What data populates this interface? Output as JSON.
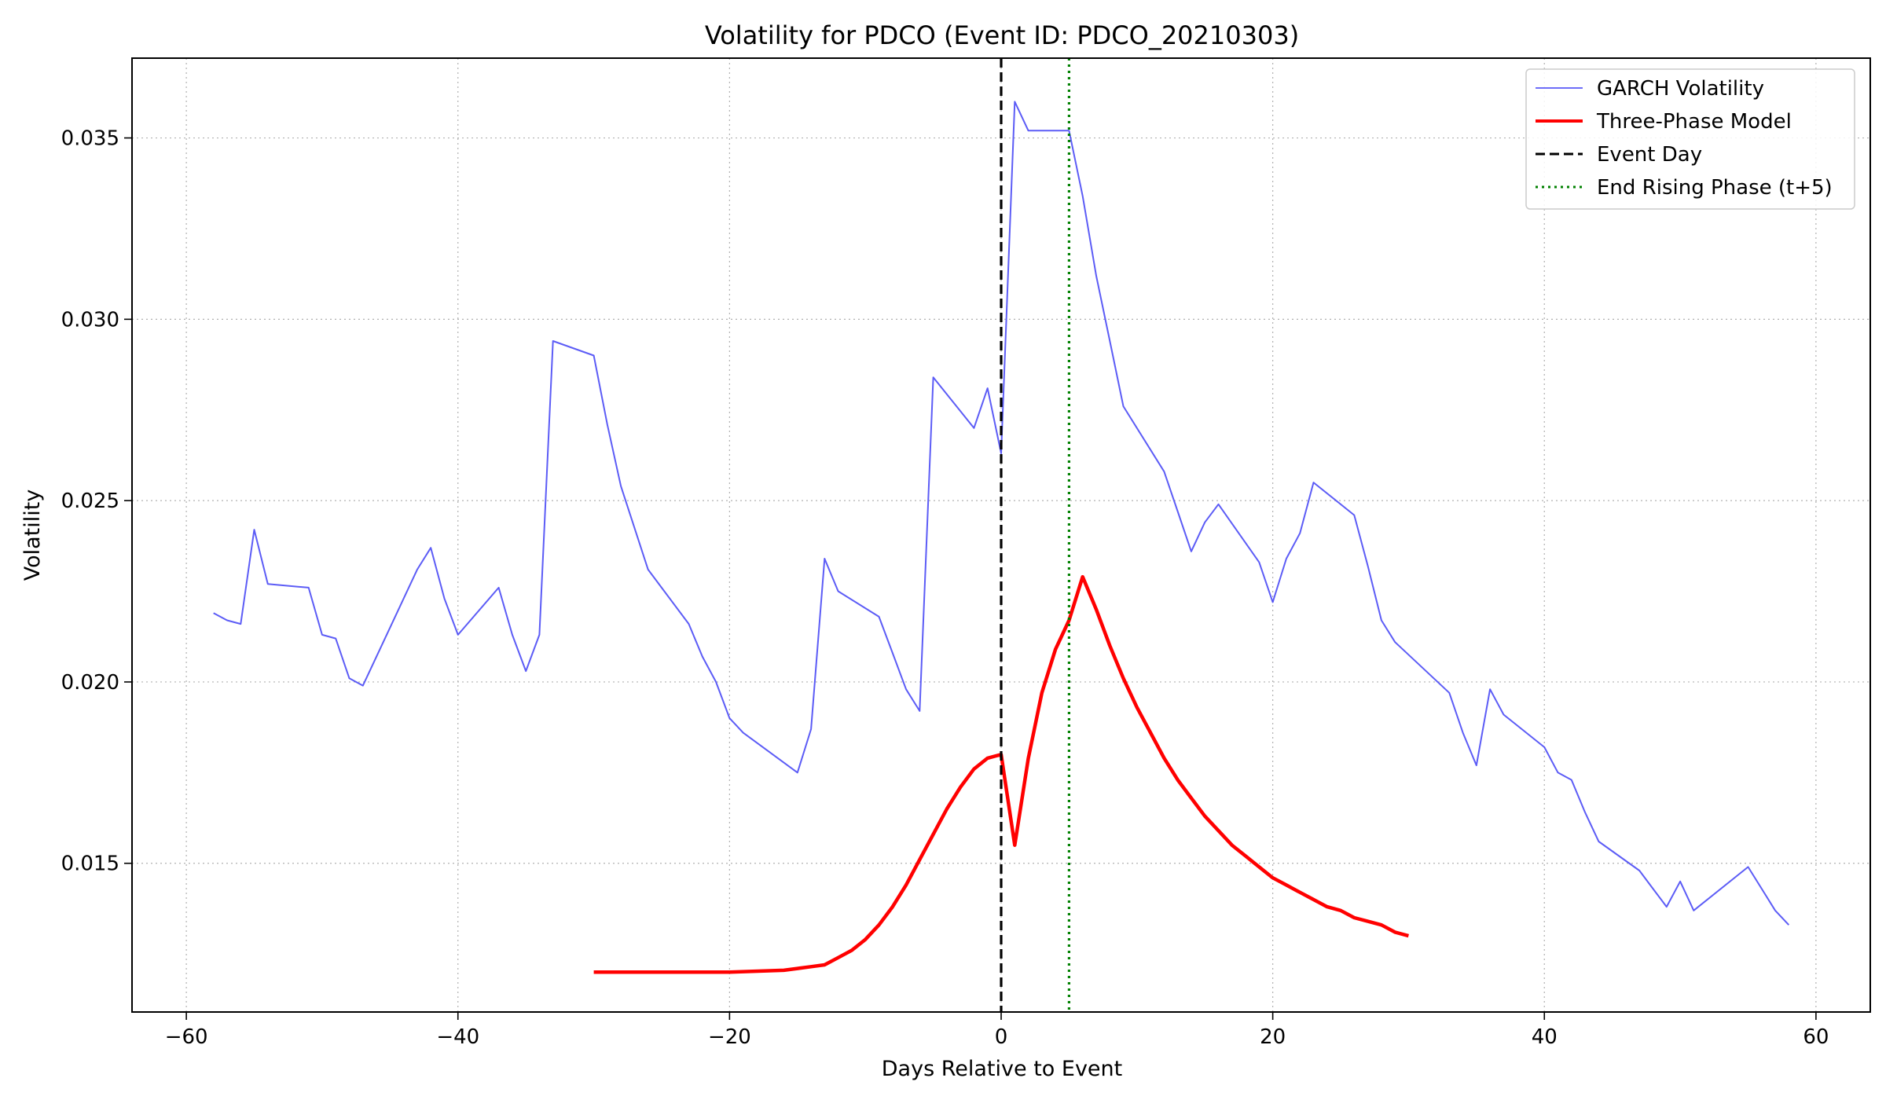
{
  "chart_data": {
    "type": "line",
    "title": "Volatility for PDCO (Event ID: PDCO_20210303)",
    "xlabel": "Days Relative to Event",
    "ylabel": "Volatility",
    "xlim": [
      -64,
      64
    ],
    "ylim": [
      0.0109,
      0.0372
    ],
    "xticks": [
      -60,
      -40,
      -20,
      0,
      20,
      40,
      60
    ],
    "xtick_labels": [
      "−60",
      "−40",
      "−20",
      "0",
      "20",
      "40",
      "60"
    ],
    "yticks": [
      0.015,
      0.02,
      0.025,
      0.03,
      0.035
    ],
    "ytick_labels": [
      "0.015",
      "0.020",
      "0.025",
      "0.030",
      "0.035"
    ],
    "grid": true,
    "legend_position": "top-right",
    "series": [
      {
        "name": "GARCH Volatility",
        "color": "#3f3ff5",
        "style": "solid",
        "x": [
          -58,
          -57,
          -56,
          -55,
          -54,
          -51,
          -50,
          -49,
          -48,
          -47,
          -43,
          -42,
          -41,
          -40,
          -37,
          -36,
          -35,
          -34,
          -33,
          -30,
          -29,
          -28,
          -26,
          -23,
          -22,
          -21,
          -20,
          -19,
          -15,
          -14,
          -13,
          -12,
          -9,
          -8,
          -7,
          -6,
          -5,
          -2,
          -1,
          0,
          1,
          2,
          5,
          6,
          7,
          8,
          9,
          12,
          13,
          14,
          15,
          16,
          19,
          20,
          21,
          22,
          23,
          26,
          27,
          28,
          29,
          33,
          34,
          35,
          36,
          37,
          40,
          41,
          42,
          43,
          44,
          47,
          48,
          49,
          50,
          51,
          55,
          56,
          57,
          58
        ],
        "values": [
          0.0219,
          0.0217,
          0.0216,
          0.0242,
          0.0227,
          0.0226,
          0.0213,
          0.0212,
          0.0201,
          0.0199,
          0.0231,
          0.0237,
          0.0223,
          0.0213,
          0.0226,
          0.0213,
          0.0203,
          0.0213,
          0.0294,
          0.029,
          0.0271,
          0.0254,
          0.0231,
          0.0216,
          0.0207,
          0.02,
          0.019,
          0.0186,
          0.0175,
          0.0187,
          0.0234,
          0.0225,
          0.0218,
          0.0208,
          0.0198,
          0.0192,
          0.0284,
          0.027,
          0.0281,
          0.0263,
          0.036,
          0.0352,
          0.0352,
          0.0334,
          0.0312,
          0.0294,
          0.0276,
          0.0258,
          0.0247,
          0.0236,
          0.0244,
          0.0249,
          0.0233,
          0.0222,
          0.0234,
          0.0241,
          0.0255,
          0.0246,
          0.0232,
          0.0217,
          0.0211,
          0.0197,
          0.0186,
          0.0177,
          0.0198,
          0.0191,
          0.0182,
          0.0175,
          0.0173,
          0.0164,
          0.0156,
          0.0148,
          0.0143,
          0.0138,
          0.0145,
          0.0137,
          0.0149,
          0.0143,
          0.0137,
          0.0133
        ]
      },
      {
        "name": "Three-Phase Model",
        "color": "#ff0000",
        "style": "solid",
        "x": [
          -30,
          -25,
          -20,
          -16,
          -15,
          -14,
          -13,
          -12,
          -11,
          -10,
          -9,
          -8,
          -7,
          -6,
          -5,
          -4,
          -3,
          -2,
          -1,
          0,
          1,
          2,
          3,
          4,
          5,
          6,
          7,
          8,
          9,
          10,
          11,
          12,
          13,
          14,
          15,
          16,
          17,
          18,
          19,
          20,
          21,
          22,
          23,
          24,
          25,
          26,
          27,
          28,
          29,
          30
        ],
        "values": [
          0.012,
          0.012,
          0.012,
          0.01205,
          0.0121,
          0.01215,
          0.0122,
          0.0124,
          0.0126,
          0.0129,
          0.0133,
          0.0138,
          0.0144,
          0.0151,
          0.0158,
          0.0165,
          0.0171,
          0.0176,
          0.0179,
          0.018,
          0.0155,
          0.0179,
          0.0197,
          0.0209,
          0.0217,
          0.0229,
          0.022,
          0.021,
          0.0201,
          0.0193,
          0.0186,
          0.0179,
          0.0173,
          0.0168,
          0.0163,
          0.0159,
          0.0155,
          0.0152,
          0.0149,
          0.0146,
          0.0144,
          0.0142,
          0.014,
          0.0138,
          0.0137,
          0.0135,
          0.0134,
          0.0133,
          0.0131,
          0.013
        ]
      }
    ],
    "reference_lines": [
      {
        "name": "Event Day",
        "x": 0,
        "color": "#000000",
        "style": "dashed"
      },
      {
        "name": "End Rising Phase (t+5)",
        "x": 5,
        "color": "#008000",
        "style": "dotted"
      }
    ],
    "legend": [
      {
        "label": "GARCH Volatility",
        "color": "#3f3ff5",
        "style": "solid",
        "width": 1.5
      },
      {
        "label": "Three-Phase Model",
        "color": "#ff0000",
        "style": "solid",
        "width": 4
      },
      {
        "label": "Event Day",
        "color": "#000000",
        "style": "dashed",
        "width": 3
      },
      {
        "label": "End Rising Phase (t+5)",
        "color": "#008000",
        "style": "dotted",
        "width": 3
      }
    ]
  }
}
